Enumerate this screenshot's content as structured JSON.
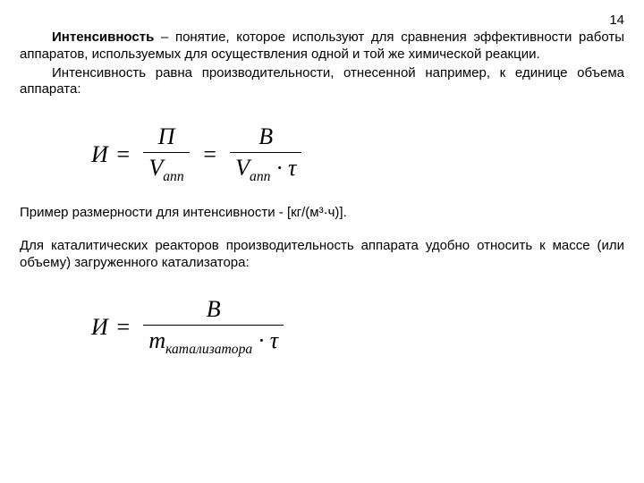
{
  "page_number": "14",
  "p1a": "Интенсивность",
  "p1b": " – понятие, которое используют для сравнения эффективности работы аппаратов, используемых для осуществления одной и той же химической реакции.",
  "p2": "Интенсивность равна производительности, отнесенной например, к единице объема аппарата:",
  "formula1": {
    "lhs": "И",
    "eq": "=",
    "f1_num": "П",
    "f1_den_V": "V",
    "f1_den_sub": "апп",
    "f2_num": "B",
    "f2_den_V": "V",
    "f2_den_sub": "апп",
    "dot": " · ",
    "tau": "τ"
  },
  "p3": "Пример размерности для интенсивности - [кг/(м³·ч)].",
  "p4": "Для каталитических реакторов производительность аппарата удобно относить к массе (или объему) загруженного катализатора:",
  "formula2": {
    "lhs": "И",
    "eq": "=",
    "num": "B",
    "den_m": "m",
    "den_sub": "катализатора",
    "dot": " · ",
    "tau": "τ"
  }
}
